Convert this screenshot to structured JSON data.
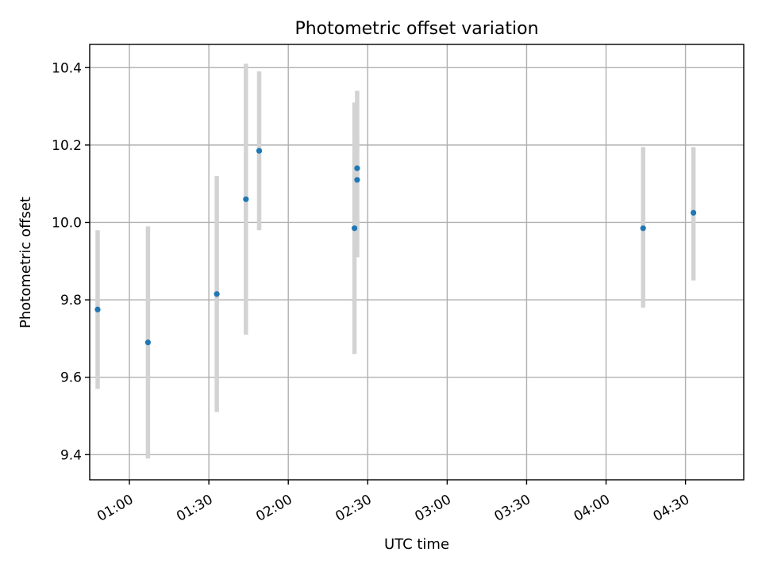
{
  "chart_data": {
    "type": "scatter",
    "title": "Photometric offset variation",
    "xlabel": "UTC time",
    "ylabel": "Photometric offset",
    "x_axis": {
      "kind": "time",
      "range": [
        "00:45",
        "04:52"
      ],
      "ticks": [
        "01:00",
        "01:30",
        "02:00",
        "02:30",
        "03:00",
        "03:30",
        "04:00",
        "04:30"
      ]
    },
    "y_axis": {
      "range": [
        9.335,
        10.46
      ],
      "ticks": [
        9.4,
        9.6,
        9.8,
        10.0,
        10.2,
        10.4
      ],
      "tick_labels": [
        "9.4",
        "9.6",
        "9.8",
        "10.0",
        "10.2",
        "10.4"
      ]
    },
    "grid": true,
    "series": [
      {
        "marker_color": "#1f77b4",
        "errorbar_color": "#d3d3d3",
        "points": [
          {
            "time": "00:48",
            "y": 9.775,
            "yerr_low": 9.57,
            "yerr_high": 9.98
          },
          {
            "time": "01:07",
            "y": 9.69,
            "yerr_low": 9.39,
            "yerr_high": 9.99
          },
          {
            "time": "01:33",
            "y": 9.815,
            "yerr_low": 9.51,
            "yerr_high": 10.12
          },
          {
            "time": "01:44",
            "y": 10.06,
            "yerr_low": 9.71,
            "yerr_high": 10.41
          },
          {
            "time": "01:49",
            "y": 10.185,
            "yerr_low": 9.98,
            "yerr_high": 10.39
          },
          {
            "time": "02:25",
            "y": 9.985,
            "yerr_low": 9.66,
            "yerr_high": 10.31
          },
          {
            "time": "02:26",
            "y": 10.11,
            "yerr_low": 9.91,
            "yerr_high": 10.31
          },
          {
            "time": "02:26",
            "y": 10.14,
            "yerr_low": 9.94,
            "yerr_high": 10.34
          },
          {
            "time": "04:14",
            "y": 9.985,
            "yerr_low": 9.78,
            "yerr_high": 10.195
          },
          {
            "time": "04:33",
            "y": 10.025,
            "yerr_low": 9.85,
            "yerr_high": 10.195
          }
        ]
      }
    ]
  }
}
